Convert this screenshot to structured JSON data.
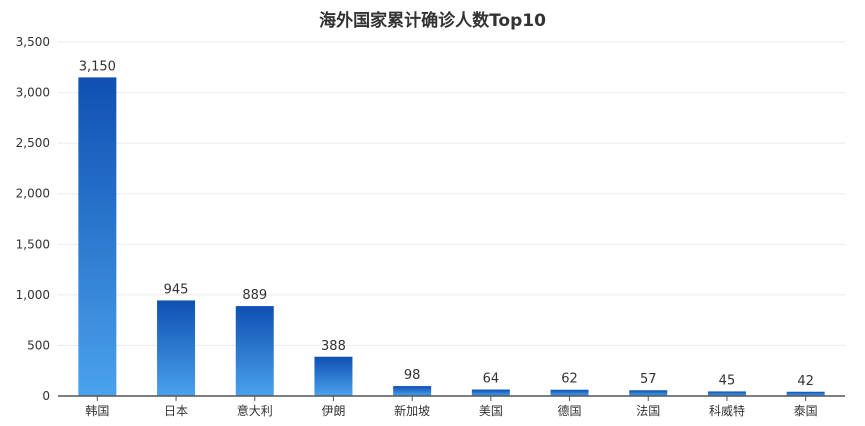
{
  "chart_data": {
    "type": "bar",
    "title": "海外国家累计确诊人数Top10",
    "xlabel": "",
    "ylabel": "",
    "categories": [
      "韩国",
      "日本",
      "意大利",
      "伊朗",
      "新加坡",
      "美国",
      "德国",
      "法国",
      "科威特",
      "泰国"
    ],
    "values": [
      3150,
      945,
      889,
      388,
      98,
      64,
      62,
      57,
      45,
      42
    ],
    "value_labels": [
      "3,150",
      "945",
      "889",
      "388",
      "98",
      "64",
      "62",
      "57",
      "45",
      "42"
    ],
    "ylim": [
      0,
      3500
    ],
    "yticks": [
      0,
      500,
      1000,
      1500,
      2000,
      2500,
      3000,
      3500
    ],
    "ytick_labels": [
      "0",
      "500",
      "1,000",
      "1,500",
      "2,000",
      "2,500",
      "3,000",
      "3,500"
    ],
    "grid": true,
    "legend": "none",
    "colors": {
      "bar_top": "#0f50b2",
      "bar_bottom": "#4aa2ec",
      "grid": "#ebebeb",
      "axis": "#555555",
      "text": "#333333"
    }
  }
}
